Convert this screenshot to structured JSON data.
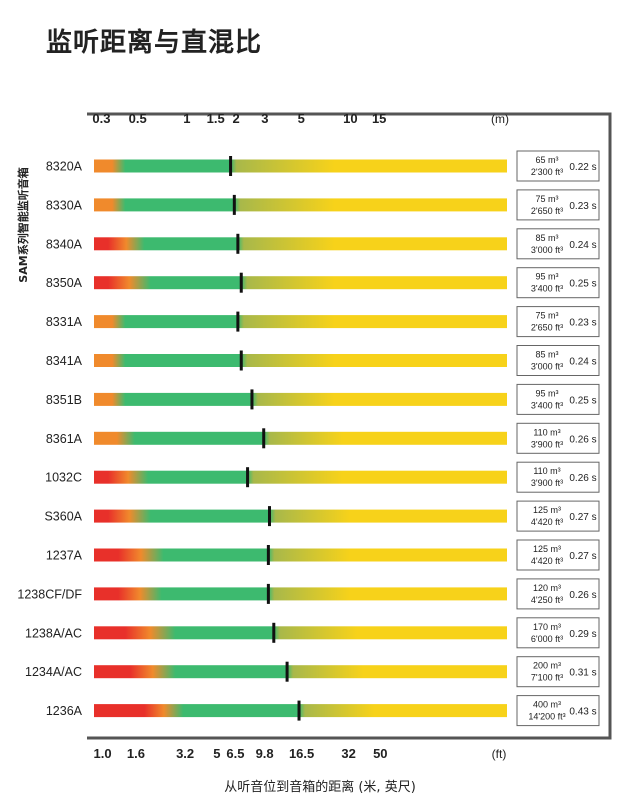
{
  "title": "监听距离与直混比",
  "xlabel": "从听音位到音箱的距离 (米, 英尺)",
  "ylabel": "SAM系列智能监听音箱",
  "colors": {
    "red": "#e8302a",
    "orange": "#f08a2c",
    "green": "#3dba6f",
    "yellow": "#f7d21a",
    "olive": "#a8b84a",
    "marker": "#111111",
    "frame": "#555555"
  },
  "chart_data": {
    "type": "bar",
    "title": "监听距离与直混比",
    "xlabel": "从听音位到音箱的距离 (米, 英尺)",
    "ylabel": "SAM系列智能监听音箱",
    "x_scale": "log",
    "xlim_m": [
      0.29,
      25
    ],
    "top_axis": {
      "unit": "(m)",
      "ticks": [
        0.3,
        0.5,
        1,
        1.5,
        2,
        3,
        5,
        10,
        15
      ],
      "tick_labels": [
        "0.3",
        "0.5",
        "1",
        "1.5",
        "2",
        "3",
        "5",
        "10",
        "15"
      ]
    },
    "bottom_axis": {
      "unit": "(ft)",
      "ticks": [
        1.0,
        1.6,
        3.2,
        5,
        6.5,
        9.8,
        16.5,
        32,
        50
      ],
      "tick_labels": [
        "1.0",
        "1.6",
        "3.2",
        "5",
        "6.5",
        "9.8",
        "16.5",
        "32",
        "50"
      ]
    },
    "series_fields": [
      "red_end_m",
      "green_start_m",
      "critical_distance_m",
      "yellow_full_m"
    ],
    "rows": [
      {
        "model": "8320A",
        "red_end_m": 0.29,
        "green_start_m": 0.42,
        "critical_distance_m": 1.85,
        "yellow_full_m": 8,
        "volume_m3": "65 m³",
        "volume_ft3": "2'300 ft³",
        "rt": "0.22 s"
      },
      {
        "model": "8330A",
        "red_end_m": 0.29,
        "green_start_m": 0.42,
        "critical_distance_m": 1.95,
        "yellow_full_m": 8,
        "volume_m3": "75 m³",
        "volume_ft3": "2'650 ft³",
        "rt": "0.23 s"
      },
      {
        "model": "8340A",
        "red_end_m": 0.33,
        "green_start_m": 0.55,
        "critical_distance_m": 2.05,
        "yellow_full_m": 8,
        "volume_m3": "85 m³",
        "volume_ft3": "3'000 ft³",
        "rt": "0.24 s"
      },
      {
        "model": "8350A",
        "red_end_m": 0.33,
        "green_start_m": 0.6,
        "critical_distance_m": 2.15,
        "yellow_full_m": 8,
        "volume_m3": "95 m³",
        "volume_ft3": "3'400 ft³",
        "rt": "0.25 s"
      },
      {
        "model": "8331A",
        "red_end_m": 0.29,
        "green_start_m": 0.42,
        "critical_distance_m": 2.05,
        "yellow_full_m": 8,
        "volume_m3": "75 m³",
        "volume_ft3": "2'650 ft³",
        "rt": "0.23 s"
      },
      {
        "model": "8341A",
        "red_end_m": 0.29,
        "green_start_m": 0.42,
        "critical_distance_m": 2.15,
        "yellow_full_m": 8,
        "volume_m3": "85 m³",
        "volume_ft3": "3'000 ft³",
        "rt": "0.24 s"
      },
      {
        "model": "8351B",
        "red_end_m": 0.29,
        "green_start_m": 0.42,
        "critical_distance_m": 2.5,
        "yellow_full_m": 8,
        "volume_m3": "95 m³",
        "volume_ft3": "3'400 ft³",
        "rt": "0.25 s"
      },
      {
        "model": "8361A",
        "red_end_m": 0.29,
        "green_start_m": 0.48,
        "critical_distance_m": 2.95,
        "yellow_full_m": 9,
        "volume_m3": "110 m³",
        "volume_ft3": "3'900 ft³",
        "rt": "0.26 s"
      },
      {
        "model": "1032C",
        "red_end_m": 0.33,
        "green_start_m": 0.58,
        "critical_distance_m": 2.35,
        "yellow_full_m": 9,
        "volume_m3": "110 m³",
        "volume_ft3": "3'900 ft³",
        "rt": "0.26 s"
      },
      {
        "model": "S360A",
        "red_end_m": 0.33,
        "green_start_m": 0.6,
        "critical_distance_m": 3.2,
        "yellow_full_m": 10,
        "volume_m3": "125 m³",
        "volume_ft3": "4'420 ft³",
        "rt": "0.27 s"
      },
      {
        "model": "1237A",
        "red_end_m": 0.38,
        "green_start_m": 0.72,
        "critical_distance_m": 3.15,
        "yellow_full_m": 10,
        "volume_m3": "125 m³",
        "volume_ft3": "4'420 ft³",
        "rt": "0.27 s"
      },
      {
        "model": "1238CF/DF",
        "red_end_m": 0.38,
        "green_start_m": 0.7,
        "critical_distance_m": 3.15,
        "yellow_full_m": 10,
        "volume_m3": "120 m³",
        "volume_ft3": "4'250 ft³",
        "rt": "0.26 s"
      },
      {
        "model": "1238A/AC",
        "red_end_m": 0.42,
        "green_start_m": 0.85,
        "critical_distance_m": 3.4,
        "yellow_full_m": 11,
        "volume_m3": "170 m³",
        "volume_ft3": "6'000 ft³",
        "rt": "0.29 s"
      },
      {
        "model": "1234A/AC",
        "red_end_m": 0.45,
        "green_start_m": 0.85,
        "critical_distance_m": 4.1,
        "yellow_full_m": 12,
        "volume_m3": "200 m³",
        "volume_ft3": "7'100 ft³",
        "rt": "0.31 s"
      },
      {
        "model": "1236A",
        "red_end_m": 0.55,
        "green_start_m": 0.95,
        "critical_distance_m": 4.85,
        "yellow_full_m": 14,
        "volume_m3": "400 m³",
        "volume_ft3": "14'200 ft³",
        "rt": "0.43 s"
      }
    ]
  }
}
